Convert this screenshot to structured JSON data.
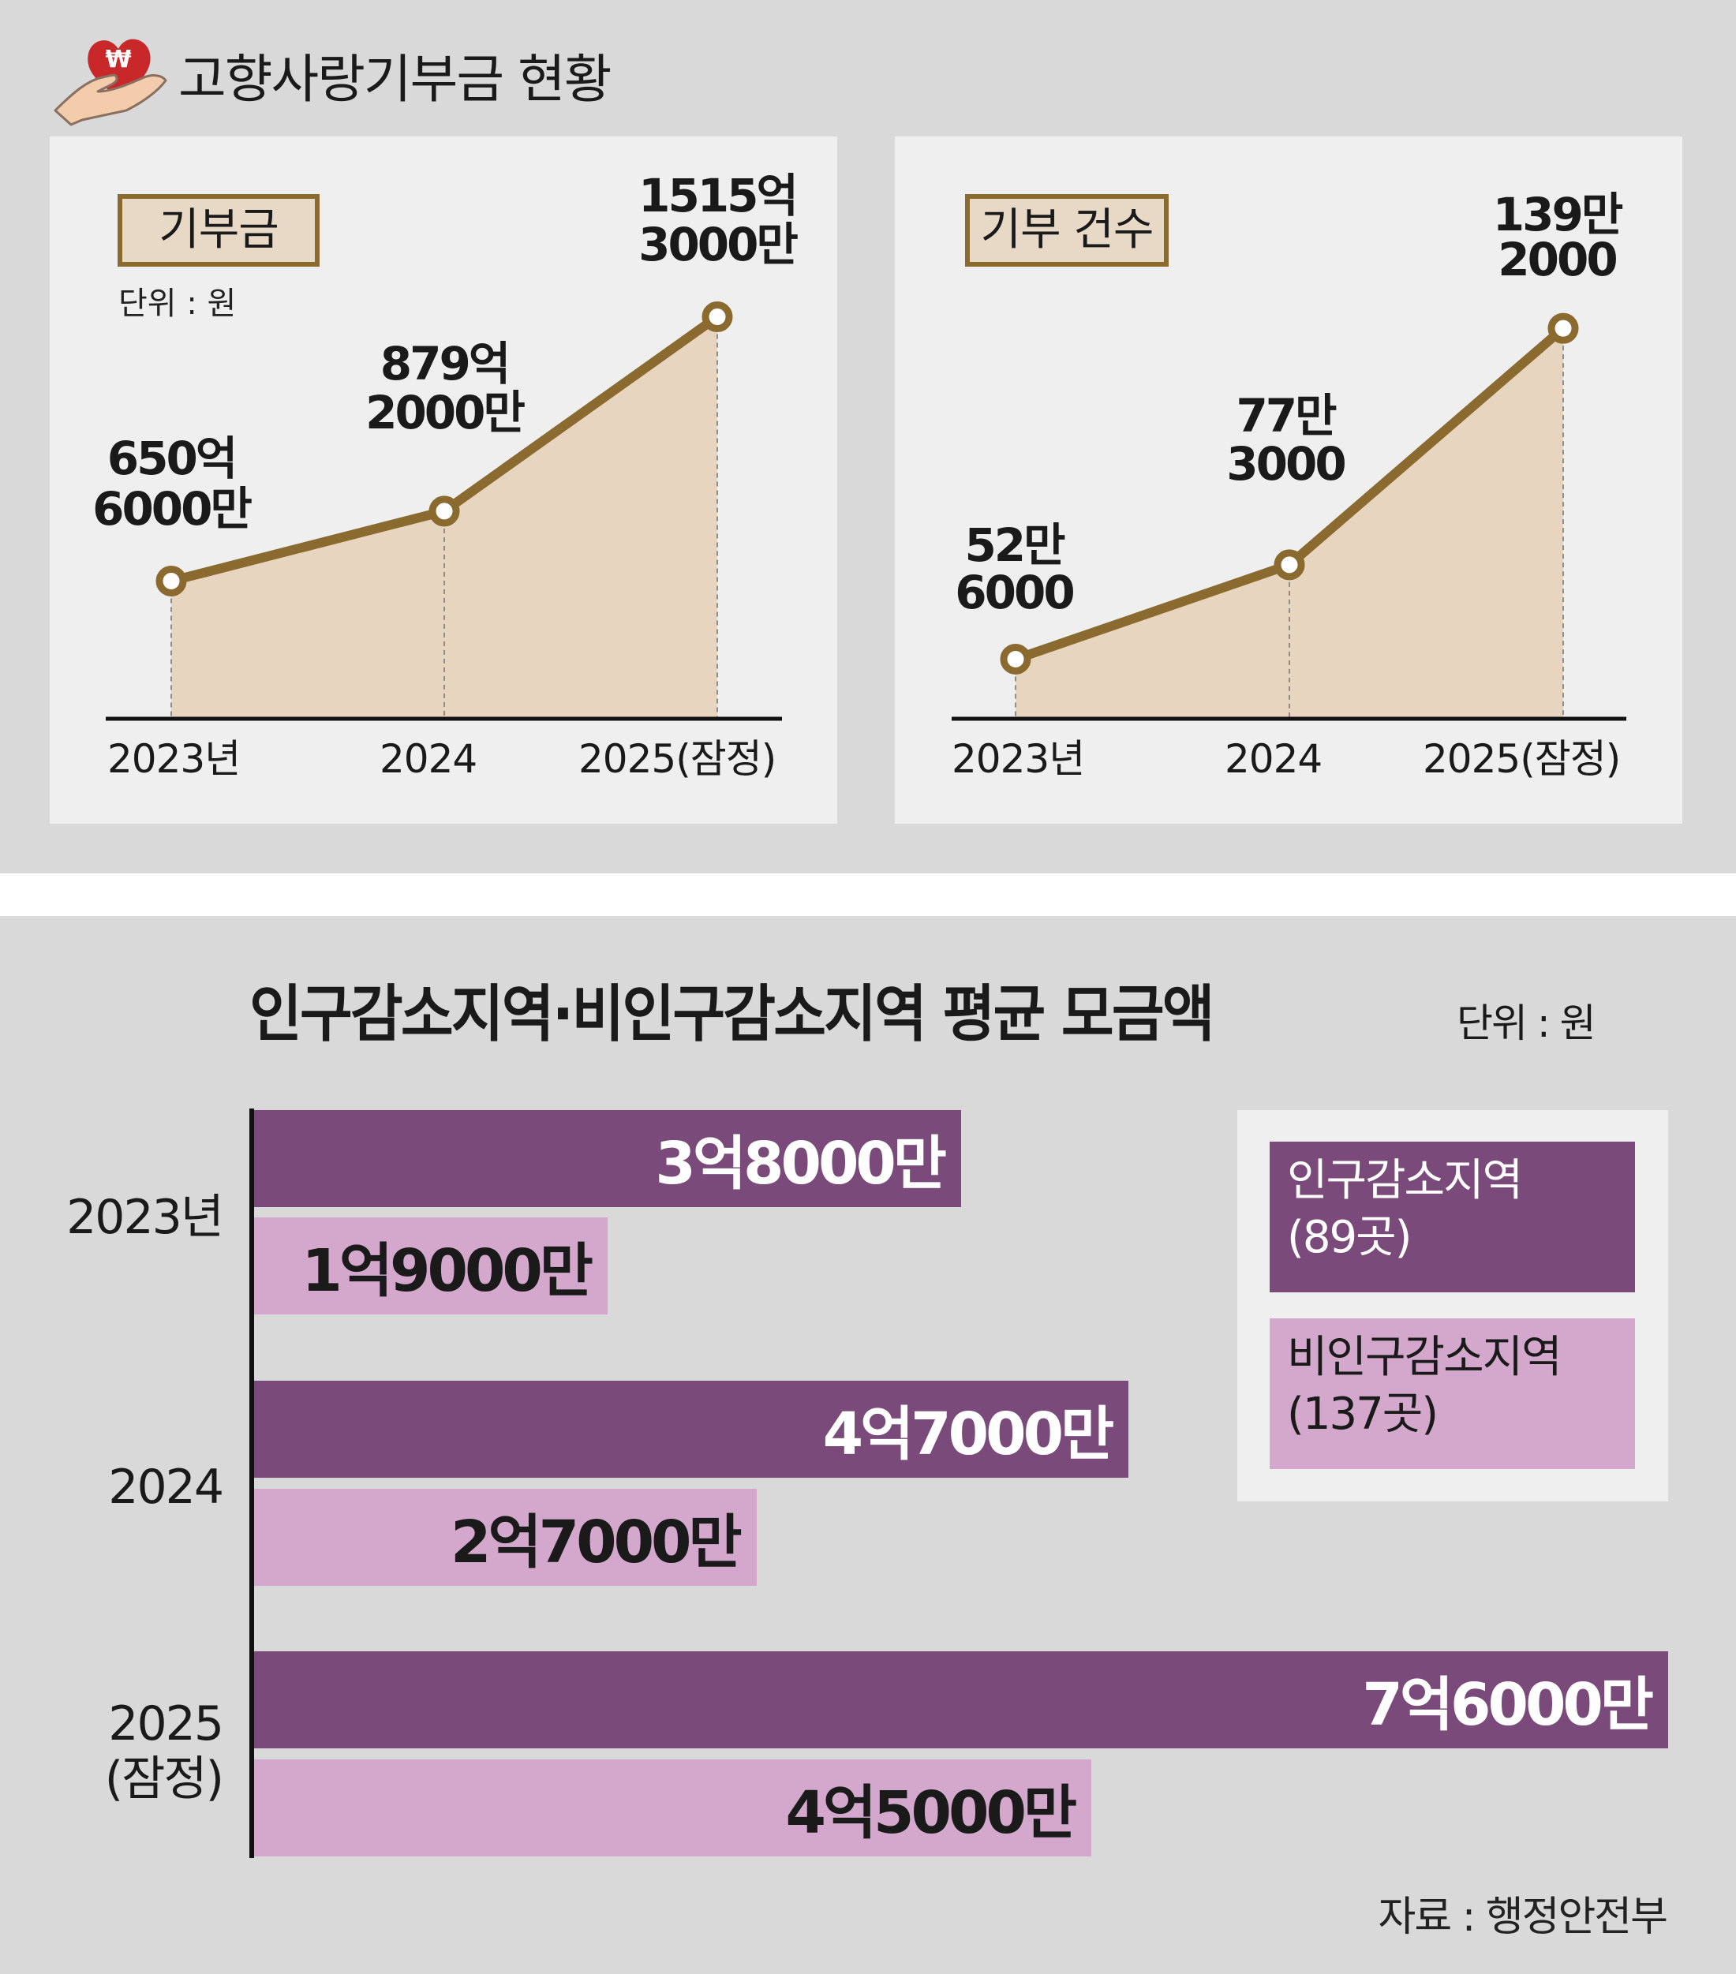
{
  "header": {
    "title": "고향사랑기부금 현황",
    "icon": "heart-hand-won-icon"
  },
  "colors": {
    "background": "#d9d9d9",
    "panel": "#efefef",
    "line": "#8a6a2e",
    "area": "#e8d5bf",
    "dark_bar": "#7a4a7a",
    "light_bar": "#d4a8cc"
  },
  "chart_data": [
    {
      "type": "area",
      "title": "기부금",
      "unit_label": "단위 : 원",
      "categories": [
        "2023년",
        "2024",
        "2025(잠정)"
      ],
      "series": [
        {
          "name": "기부금 (억원)",
          "values": [
            650.6,
            879.2,
            1515.3
          ]
        }
      ],
      "value_labels": [
        [
          "650억",
          "6000만"
        ],
        [
          "879억",
          "2000만"
        ],
        [
          "1515억",
          "3000만"
        ]
      ],
      "ylim": [
        200,
        1700
      ],
      "grid": false
    },
    {
      "type": "area",
      "title": "기부 건수",
      "categories": [
        "2023년",
        "2024",
        "2025(잠정)"
      ],
      "series": [
        {
          "name": "기부 건수 (만건)",
          "values": [
            52.6,
            77.3,
            139.2
          ]
        }
      ],
      "value_labels": [
        [
          "52만",
          "6000"
        ],
        [
          "77만",
          "3000"
        ],
        [
          "139만",
          "2000"
        ]
      ],
      "ylim": [
        37,
        157
      ],
      "grid": false
    },
    {
      "type": "bar",
      "orientation": "horizontal",
      "title": "인구감소지역·비인구감소지역 평균 모금액",
      "unit_label": "단위 : 원",
      "categories": [
        [
          "2023년"
        ],
        [
          "2024"
        ],
        [
          "2025",
          "(잠정)"
        ]
      ],
      "series": [
        {
          "name": "인구감소지역",
          "count_label": "(89곳)",
          "values": [
            38000,
            47000,
            76000
          ],
          "labels": [
            "3억8000만",
            "4억7000만",
            "7억6000만"
          ]
        },
        {
          "name": "비인구감소지역",
          "count_label": "(137곳)",
          "values": [
            19000,
            27000,
            45000
          ],
          "labels": [
            "1억9000만",
            "2억7000만",
            "4억5000만"
          ]
        }
      ],
      "value_unit": "만원",
      "xlim": [
        0,
        76000
      ],
      "legend": "top-right"
    }
  ],
  "source": "자료 : 행정안전부"
}
